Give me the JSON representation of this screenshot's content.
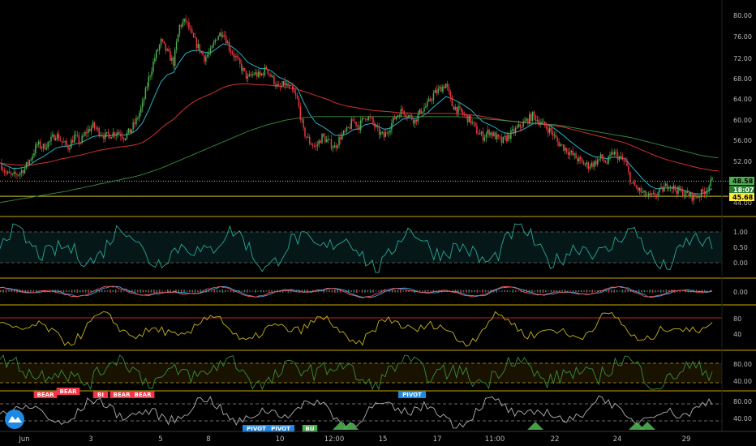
{
  "colors": {
    "background": "#000000",
    "bull": "#4caf50",
    "bear": "#f23645",
    "ema_fast": "#ffffff",
    "ema_mid": "#26c6da",
    "ema_slow": "#e53935",
    "ema_long": "#43a047",
    "separator": "#c8a800",
    "last_price": "#4caf50",
    "level": "#ffeb3b"
  },
  "price_axis": {
    "ticks": [
      "80.00",
      "76.00",
      "72.00",
      "68.00",
      "64.00",
      "60.00",
      "56.00",
      "52.00",
      "44.00"
    ],
    "last_price": "48.58",
    "countdown": "18:07",
    "level": "45.68"
  },
  "x_axis": {
    "ticks": [
      "Jun",
      "3",
      "5",
      "8",
      "10",
      "12:00",
      "15",
      "17",
      "11:00",
      "22",
      "24",
      "29"
    ]
  },
  "panels": [
    {
      "ticks": [
        "1.00",
        "0.50",
        "0.00"
      ]
    },
    {
      "ticks": [
        "0.00"
      ]
    },
    {
      "ticks": [
        "80",
        "40"
      ]
    },
    {
      "ticks": [
        "80.00",
        "40.00"
      ]
    },
    {
      "ticks": [
        "80.00",
        "40.00"
      ]
    }
  ],
  "signals": [
    {
      "text": "BEAR",
      "type": "bear"
    },
    {
      "text": "BEAR",
      "type": "bear"
    },
    {
      "text": "BI",
      "type": "bear"
    },
    {
      "text": "BEAR",
      "type": "bear"
    },
    {
      "text": "BEAR",
      "type": "bear"
    },
    {
      "text": "PIVOT",
      "type": "pivot"
    },
    {
      "text": "PIVOT",
      "type": "pivot"
    },
    {
      "text": "PIVOT",
      "type": "pivot"
    },
    {
      "text": "BU",
      "type": "bull"
    }
  ],
  "chart_data": {
    "type": "line",
    "ylim": [
      44,
      80
    ],
    "series": [
      {
        "values": [
          52,
          50,
          49.5,
          50,
          51,
          53,
          55.5,
          55,
          56,
          57.5,
          56,
          55,
          57,
          56,
          58,
          59,
          58,
          57,
          57.5,
          58,
          57,
          58,
          60,
          63,
          68,
          72,
          75,
          73,
          71,
          78,
          79,
          76,
          74,
          72,
          73,
          76,
          77,
          74,
          72,
          70,
          68,
          69,
          68.5,
          70,
          68,
          66,
          67,
          66,
          64,
          58,
          56,
          55,
          57,
          56,
          55,
          57,
          58,
          60,
          59,
          61,
          60,
          58,
          57,
          59,
          61,
          62,
          61,
          60,
          62,
          63,
          65,
          66,
          67,
          63,
          62,
          61,
          60,
          58,
          57,
          58,
          57,
          56,
          57,
          58,
          59,
          60,
          61,
          60,
          59,
          58,
          56,
          55,
          54,
          53,
          52,
          51.5,
          52,
          53,
          52,
          54,
          53,
          52,
          48,
          47,
          46,
          45.5,
          46,
          47,
          48,
          47,
          46.5,
          46,
          45.5,
          46,
          47,
          48.5
        ]
      },
      {
        "values": [
          52,
          51.5,
          51,
          51,
          51.2,
          51.8,
          52.6,
          53.2,
          54,
          54.8,
          55.1,
          55.2,
          55.6,
          55.8,
          56.4,
          57,
          57.2,
          57.1,
          57.2,
          57.4,
          57.3,
          57.5,
          58.2,
          59.6,
          62,
          64.8,
          67.4,
          68.7,
          69.2,
          71.2,
          72.8,
          73.3,
          73.4,
          73,
          72.9,
          73.7,
          74.6,
          74.4,
          73.6,
          72.5,
          71.1,
          70.5,
          69.9,
          69.9,
          69.3,
          68.3,
          67.8,
          67.2,
          66.2,
          63.6,
          61.3,
          59.6,
          59,
          58.2,
          57.3,
          57.2,
          57.5,
          58.3,
          58.5,
          59.3,
          59.5,
          59,
          58.4,
          58.6,
          59.4,
          60.3,
          60.6,
          60.4,
          60.8,
          61.5,
          62.6,
          63.6,
          64.6,
          64.2,
          63.6,
          62.9,
          62.1,
          60.9,
          59.8,
          59.3,
          58.7,
          57.9,
          57.6,
          57.7,
          58.1,
          58.7,
          59.4,
          59.6,
          59.4,
          59,
          58.1,
          57.2,
          56.2,
          55.3,
          54.4,
          53.7,
          53.2,
          53.1,
          52.8,
          53.1,
          53,
          52.8,
          51.3,
          50,
          48.7,
          47.6,
          47.1,
          47.1,
          47.4,
          47.3,
          47,
          46.6,
          46.2,
          46.1,
          46.4,
          47.1
        ]
      },
      {
        "values": [
          52,
          51.8,
          51.7,
          51.6,
          51.6,
          51.6,
          51.8,
          52,
          52.2,
          52.5,
          52.8,
          53,
          53.3,
          53.5,
          53.8,
          54.1,
          54.4,
          54.6,
          54.8,
          55,
          55.1,
          55.3,
          55.5,
          55.9,
          56.6,
          57.5,
          58.6,
          59.5,
          60.3,
          61.4,
          62.5,
          63.4,
          64.1,
          64.6,
          65.1,
          65.7,
          66.3,
          66.7,
          66.9,
          67,
          67,
          66.9,
          66.8,
          66.8,
          66.7,
          66.6,
          66.4,
          66.2,
          66,
          65.6,
          65.2,
          64.8,
          64.4,
          64,
          63.5,
          63.1,
          62.8,
          62.6,
          62.4,
          62.2,
          62,
          61.9,
          61.8,
          61.7,
          61.6,
          61.5,
          61.5,
          61.4,
          61.4,
          61.4,
          61.4,
          61.4,
          61.4,
          61.4,
          61.3,
          61.2,
          61.1,
          61,
          60.8,
          60.6,
          60.4,
          60.2,
          60,
          59.9,
          59.7,
          59.6,
          59.5,
          59.4,
          59.3,
          59.2,
          59,
          58.8,
          58.5,
          58.2,
          57.9,
          57.6,
          57.3,
          57,
          56.7,
          56.4,
          56.1,
          55.8,
          55.3,
          54.8,
          54.3,
          53.8,
          53.3,
          52.9,
          52.5,
          52.2,
          51.9,
          51.6,
          51.3,
          51,
          50.8,
          50.6,
          50.5
        ]
      },
      {
        "values": [
          44.5,
          44.7,
          44.9,
          45.1,
          45.3,
          45.5,
          45.7,
          45.9,
          46.1,
          46.3,
          46.5,
          46.7,
          47,
          47.2,
          47.5,
          47.7,
          48,
          48.2,
          48.5,
          48.7,
          49,
          49.2,
          49.5,
          49.8,
          50.2,
          50.6,
          51,
          51.5,
          52,
          52.5,
          53,
          53.5,
          54,
          54.5,
          55,
          55.5,
          56,
          56.5,
          57,
          57.5,
          58,
          58.4,
          58.8,
          59.2,
          59.5,
          59.8,
          60.1,
          60.3,
          60.5,
          60.6,
          60.7,
          60.8,
          60.8,
          60.8,
          60.8,
          60.8,
          60.8,
          60.8,
          60.8,
          60.8,
          60.8,
          60.8,
          60.8,
          60.8,
          60.8,
          60.8,
          60.8,
          60.8,
          60.8,
          60.8,
          60.8,
          60.8,
          60.8,
          60.8,
          60.8,
          60.7,
          60.6,
          60.5,
          60.4,
          60.3,
          60.2,
          60.1,
          60,
          59.9,
          59.8,
          59.7,
          59.6,
          59.5,
          59.4,
          59.3,
          59.2,
          59,
          58.8,
          58.6,
          58.4,
          58.2,
          58,
          57.8,
          57.6,
          57.4,
          57.2,
          57,
          56.8,
          56.5,
          56.2,
          55.9,
          55.6,
          55.3,
          55,
          54.7,
          54.4,
          54.1,
          53.8,
          53.5,
          53.3,
          53.1,
          53
        ]
      }
    ]
  }
}
